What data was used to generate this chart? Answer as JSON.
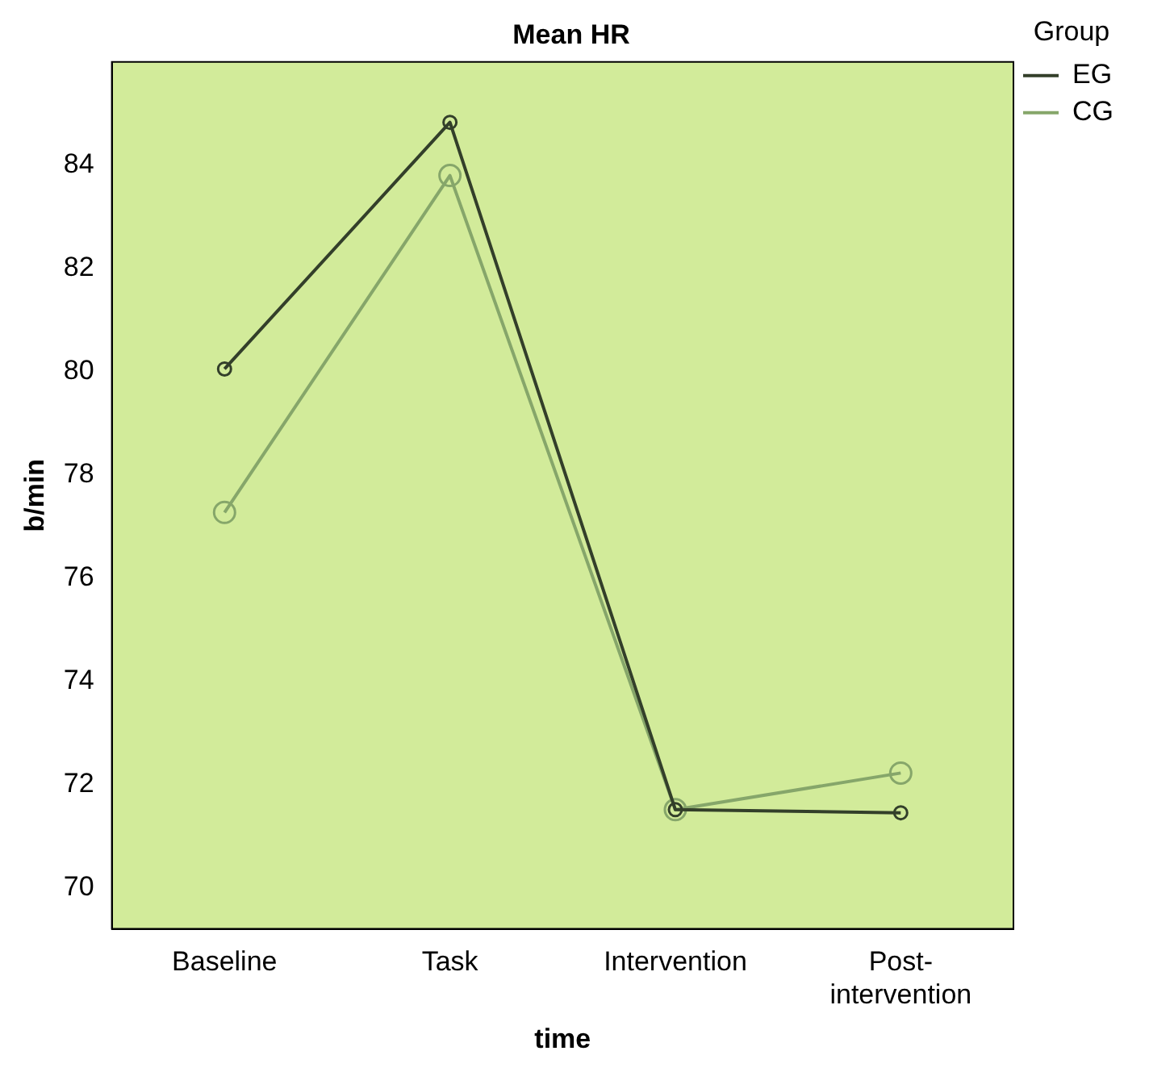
{
  "chart_data": {
    "type": "line",
    "title": "Mean HR",
    "xlabel": "time",
    "ylabel": "b/min",
    "legend_title": "Group",
    "categories": [
      "Baseline",
      "Task",
      "Intervention",
      "Post-intervention"
    ],
    "series": [
      {
        "name": "EG",
        "color": "#333f2a",
        "values": [
          80.05,
          84.83,
          71.51,
          71.45
        ]
      },
      {
        "name": "CG",
        "color": "#86a66a",
        "values": [
          77.27,
          83.8,
          71.51,
          72.22
        ]
      }
    ],
    "ylim": [
      69.2,
      86
    ],
    "yticks": [
      70,
      72,
      74,
      76,
      78,
      80,
      82,
      84
    ],
    "grid": false,
    "legend": "top right",
    "marker": "circle",
    "line_style": "solid"
  }
}
